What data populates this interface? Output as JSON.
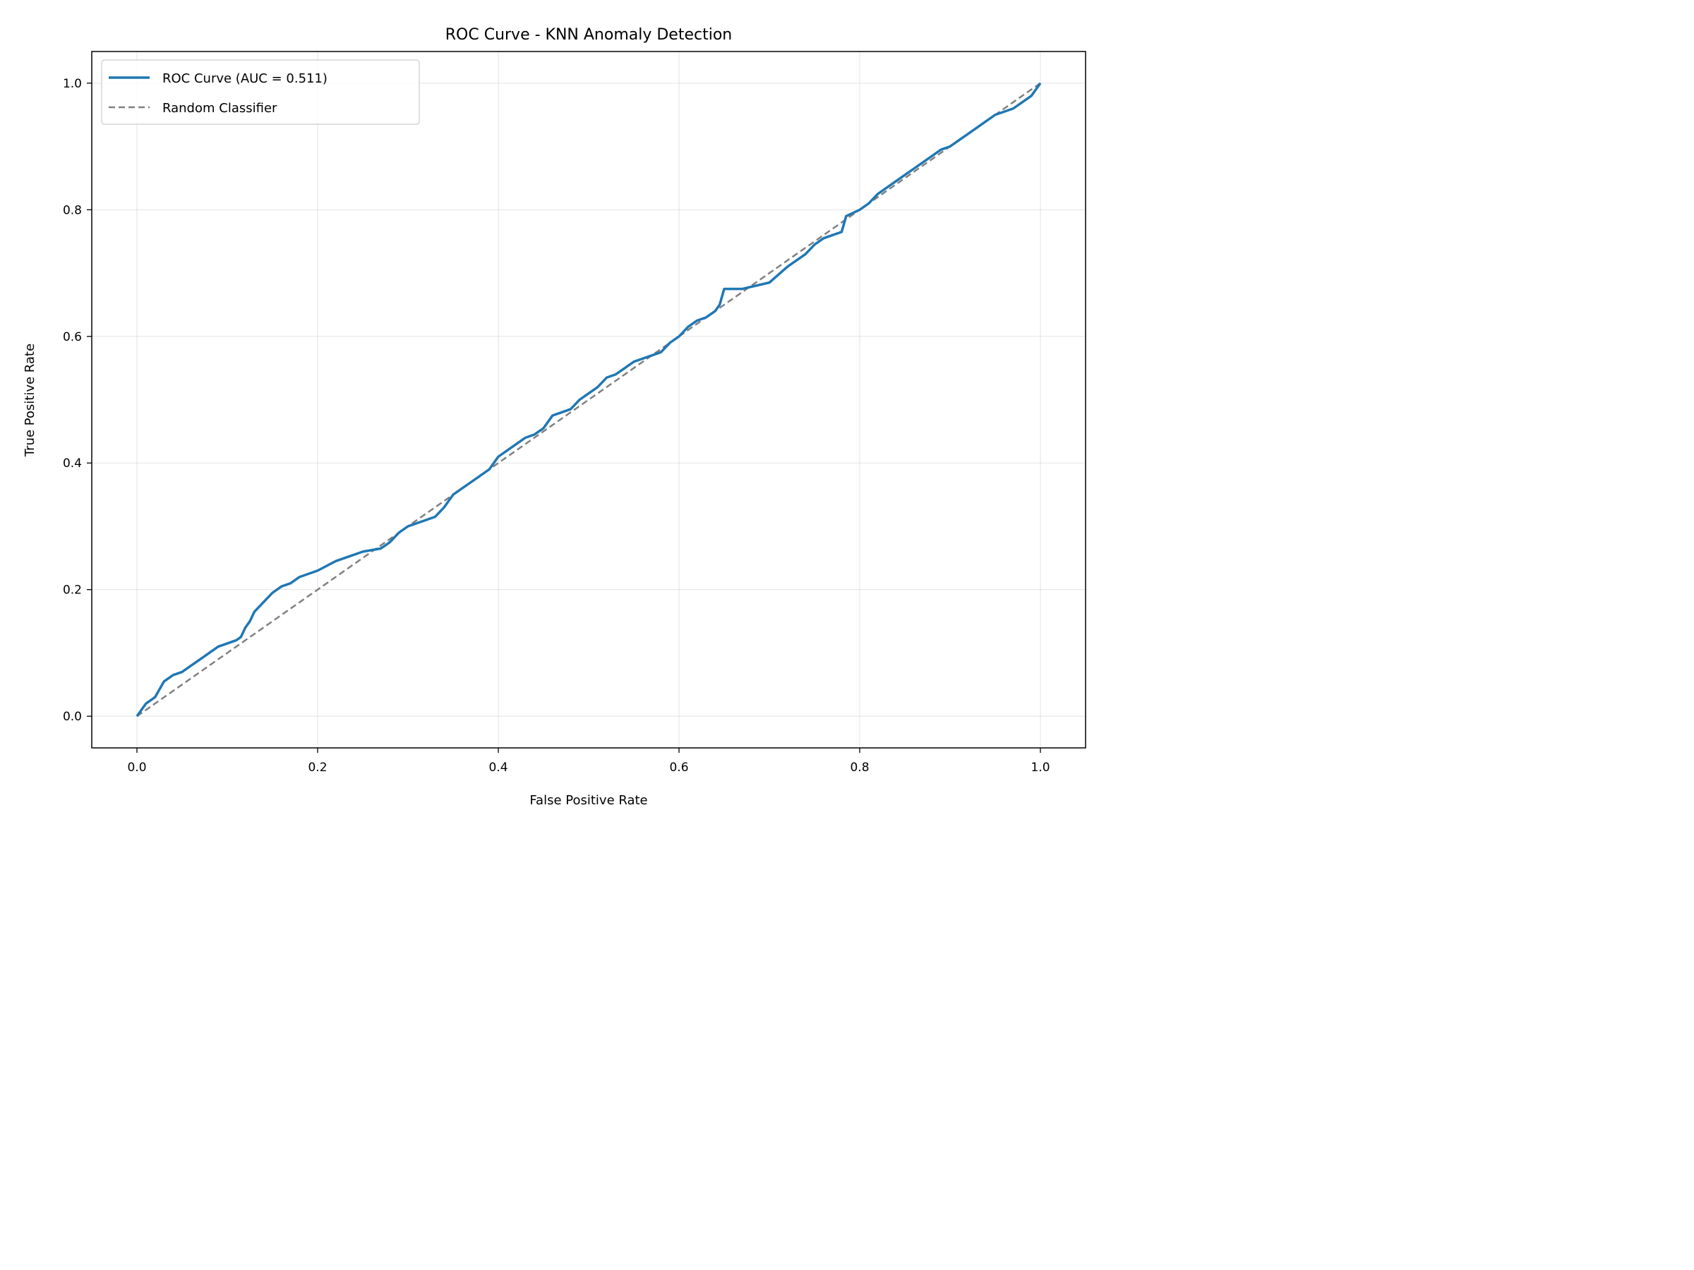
{
  "chart_data": {
    "type": "line",
    "title": "ROC Curve - KNN Anomaly Detection",
    "xlabel": "False Positive Rate",
    "ylabel": "True Positive Rate",
    "xlim": [
      -0.05,
      1.05
    ],
    "ylim": [
      -0.05,
      1.05
    ],
    "xticks": [
      0.0,
      0.2,
      0.4,
      0.6,
      0.8,
      1.0
    ],
    "yticks": [
      0.0,
      0.2,
      0.4,
      0.6,
      0.8,
      1.0
    ],
    "xtick_labels": [
      "0.0",
      "0.2",
      "0.4",
      "0.6",
      "0.8",
      "1.0"
    ],
    "ytick_labels": [
      "0.0",
      "0.2",
      "0.4",
      "0.6",
      "0.8",
      "1.0"
    ],
    "grid": true,
    "legend_position": "top-left",
    "series": [
      {
        "name": "ROC Curve (AUC = 0.511)",
        "color": "#1f77b4",
        "style": "solid",
        "x": [
          0.0,
          0.005,
          0.01,
          0.015,
          0.02,
          0.03,
          0.04,
          0.05,
          0.06,
          0.07,
          0.08,
          0.09,
          0.1,
          0.11,
          0.115,
          0.12,
          0.125,
          0.13,
          0.14,
          0.15,
          0.16,
          0.17,
          0.18,
          0.2,
          0.22,
          0.23,
          0.25,
          0.27,
          0.28,
          0.29,
          0.3,
          0.32,
          0.33,
          0.34,
          0.35,
          0.36,
          0.37,
          0.38,
          0.39,
          0.4,
          0.41,
          0.42,
          0.43,
          0.44,
          0.45,
          0.46,
          0.47,
          0.48,
          0.49,
          0.5,
          0.51,
          0.52,
          0.53,
          0.54,
          0.55,
          0.56,
          0.57,
          0.58,
          0.59,
          0.6,
          0.61,
          0.62,
          0.63,
          0.64,
          0.645,
          0.65,
          0.67,
          0.7,
          0.72,
          0.73,
          0.74,
          0.75,
          0.76,
          0.77,
          0.78,
          0.785,
          0.8,
          0.81,
          0.82,
          0.83,
          0.84,
          0.85,
          0.86,
          0.87,
          0.88,
          0.89,
          0.9,
          0.91,
          0.92,
          0.93,
          0.94,
          0.95,
          0.96,
          0.97,
          0.98,
          0.99,
          0.995,
          1.0
        ],
        "y": [
          0.0,
          0.01,
          0.02,
          0.025,
          0.03,
          0.055,
          0.065,
          0.07,
          0.08,
          0.09,
          0.1,
          0.11,
          0.115,
          0.12,
          0.125,
          0.14,
          0.15,
          0.165,
          0.18,
          0.195,
          0.205,
          0.21,
          0.22,
          0.23,
          0.245,
          0.25,
          0.26,
          0.265,
          0.275,
          0.29,
          0.3,
          0.31,
          0.315,
          0.33,
          0.35,
          0.36,
          0.37,
          0.38,
          0.39,
          0.41,
          0.42,
          0.43,
          0.44,
          0.445,
          0.455,
          0.475,
          0.48,
          0.485,
          0.5,
          0.51,
          0.52,
          0.535,
          0.54,
          0.55,
          0.56,
          0.565,
          0.57,
          0.575,
          0.59,
          0.6,
          0.615,
          0.625,
          0.63,
          0.64,
          0.65,
          0.675,
          0.675,
          0.685,
          0.71,
          0.72,
          0.73,
          0.745,
          0.755,
          0.76,
          0.765,
          0.79,
          0.8,
          0.81,
          0.825,
          0.835,
          0.845,
          0.855,
          0.865,
          0.875,
          0.885,
          0.895,
          0.9,
          0.91,
          0.92,
          0.93,
          0.94,
          0.95,
          0.955,
          0.96,
          0.97,
          0.98,
          0.99,
          1.0
        ]
      },
      {
        "name": "Random Classifier",
        "color": "#808080",
        "style": "dashed",
        "x": [
          0.0,
          1.0
        ],
        "y": [
          0.0,
          1.0
        ]
      }
    ]
  }
}
